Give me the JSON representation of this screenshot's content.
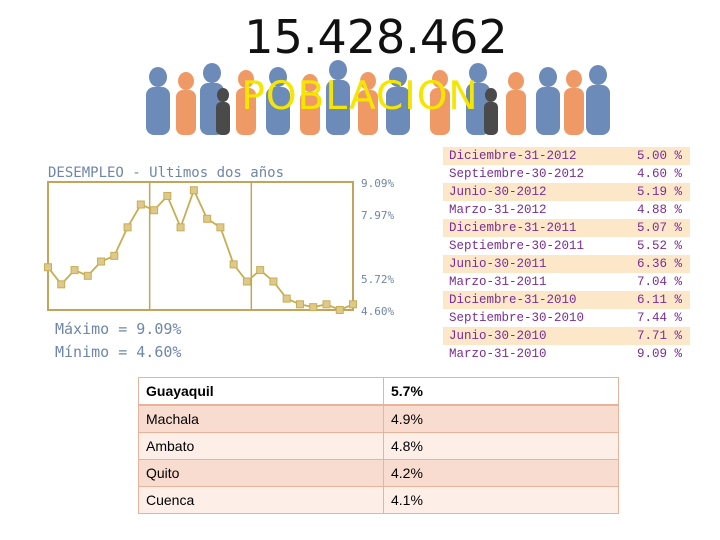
{
  "header": {
    "population": "15.428.462",
    "banner_title": "POBLACION"
  },
  "chart_data": {
    "type": "line",
    "title": "DESEMPLEO - Ultimos dos años",
    "x": [
      "Marzo-31-2010",
      "Junio-30-2010",
      "Septiembre-30-2010",
      "Diciembre-31-2010",
      "Marzo-31-2011",
      "Junio-30-2011",
      "Septiembre-30-2011",
      "Diciembre-31-2011",
      "Marzo-31-2012",
      "Junio-30-2012",
      "Septiembre-30-2012",
      "Diciembre-31-2012"
    ],
    "points": [
      {
        "x": 0,
        "y": 6.1
      },
      {
        "x": 1,
        "y": 5.5
      },
      {
        "x": 2,
        "y": 6.0
      },
      {
        "x": 3,
        "y": 5.8
      },
      {
        "x": 4,
        "y": 6.3
      },
      {
        "x": 5,
        "y": 6.5
      },
      {
        "x": 6,
        "y": 7.5
      },
      {
        "x": 7,
        "y": 8.3
      },
      {
        "x": 8,
        "y": 8.1
      },
      {
        "x": 9,
        "y": 8.6
      },
      {
        "x": 10,
        "y": 7.5
      },
      {
        "x": 11,
        "y": 8.8
      },
      {
        "x": 12,
        "y": 7.8
      },
      {
        "x": 13,
        "y": 7.5
      },
      {
        "x": 14,
        "y": 6.2
      },
      {
        "x": 15,
        "y": 5.6
      },
      {
        "x": 16,
        "y": 6.0
      },
      {
        "x": 17,
        "y": 5.6
      },
      {
        "x": 18,
        "y": 5.0
      },
      {
        "x": 19,
        "y": 4.8
      },
      {
        "x": 20,
        "y": 4.7
      },
      {
        "x": 21,
        "y": 4.8
      },
      {
        "x": 22,
        "y": 4.6
      },
      {
        "x": 23,
        "y": 4.8
      }
    ],
    "xlim": [
      0,
      23
    ],
    "ylim": [
      4.6,
      9.09
    ],
    "y_labels": [
      "9.09%",
      "7.97%",
      "5.72%",
      "4.60%"
    ],
    "y_label_values": [
      9.09,
      7.97,
      5.72,
      4.6
    ],
    "grid": true,
    "max_label": "Máximo = 9.09%",
    "min_label": "Mínimo = 4.60%",
    "quarters": [
      {
        "date": "Diciembre-31-2012",
        "rate": "5.00 %"
      },
      {
        "date": "Septiembre-30-2012",
        "rate": "4.60 %"
      },
      {
        "date": "Junio-30-2012",
        "rate": "5.19 %"
      },
      {
        "date": "Marzo-31-2012",
        "rate": "4.88 %"
      },
      {
        "date": "Diciembre-31-2011",
        "rate": "5.07 %"
      },
      {
        "date": "Septiembre-30-2011",
        "rate": "5.52 %"
      },
      {
        "date": "Junio-30-2011",
        "rate": "6.36 %"
      },
      {
        "date": "Marzo-31-2011",
        "rate": "7.04 %"
      },
      {
        "date": "Diciembre-31-2010",
        "rate": "6.11 %"
      },
      {
        "date": "Septiembre-30-2010",
        "rate": "7.44 %"
      },
      {
        "date": "Junio-30-2010",
        "rate": "7.71 %"
      },
      {
        "date": "Marzo-31-2010",
        "rate": "9.09 %"
      }
    ]
  },
  "cities": [
    {
      "name": "Guayaquil",
      "value": "5.7%"
    },
    {
      "name": "Machala",
      "value": "4.9%"
    },
    {
      "name": "Ambato",
      "value": "4.8%"
    },
    {
      "name": "Quito",
      "value": "4.2%"
    },
    {
      "name": "Cuenca",
      "value": "4.1%"
    }
  ],
  "colors": {
    "line": "#c8ad52",
    "marker": "#ddc98c",
    "axis": "#c2a45a",
    "label": "#6f86a8",
    "date_text": "#7a2c95",
    "date_bg_a": "#fce8c8",
    "date_bg_b": "#ffffff",
    "banner_figures": "#6d8bb8",
    "banner_accent": "#ef9a66"
  }
}
